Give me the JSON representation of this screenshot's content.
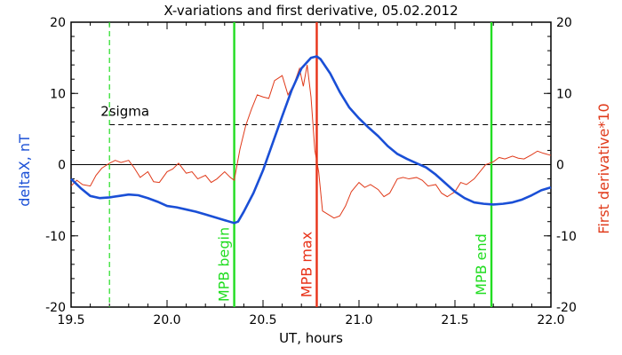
{
  "chart_data": {
    "type": "line",
    "title": "X-variations and first derivative, 05.02.2012",
    "xlabel": "UT, hours",
    "ylabel_left": "deltaX, nT",
    "ylabel_right": "First derivative*10",
    "xlim": [
      19.5,
      22.0
    ],
    "ylim": [
      -20,
      20
    ],
    "xticks": [
      "19.5",
      "20.0",
      "20.5",
      "21.0",
      "21.5",
      "22.0"
    ],
    "yticks": [
      "20",
      "10",
      "0",
      "-10",
      "-20"
    ],
    "colors": {
      "deltax": "#1a4fd6",
      "derivative": "#e03a1a",
      "mpb_green": "#22dd22",
      "mpb_max": "#e83218"
    },
    "sigma": {
      "label": "2sigma",
      "value": 5.6
    },
    "zero_line": 0,
    "sigma_dashed_x": 19.7,
    "markers": [
      {
        "label": "MPB begin",
        "x": 20.35
      },
      {
        "label": "MPB max",
        "x": 20.78
      },
      {
        "label": "MPB end",
        "x": 21.69
      }
    ],
    "series": [
      {
        "key": "deltax",
        "x": [
          19.5,
          19.55,
          19.6,
          19.65,
          19.7,
          19.75,
          19.8,
          19.85,
          19.9,
          19.95,
          20.0,
          20.05,
          20.1,
          20.15,
          20.2,
          20.25,
          20.3,
          20.35,
          20.37,
          20.4,
          20.45,
          20.5,
          20.55,
          20.6,
          20.65,
          20.7,
          20.75,
          20.78,
          20.8,
          20.85,
          20.9,
          20.95,
          21.0,
          21.05,
          21.1,
          21.15,
          21.2,
          21.25,
          21.3,
          21.35,
          21.4,
          21.45,
          21.5,
          21.55,
          21.6,
          21.65,
          21.7,
          21.75,
          21.8,
          21.85,
          21.9,
          21.95,
          22.0
        ],
        "values": [
          -2,
          -3.3,
          -4.4,
          -4.7,
          -4.6,
          -4.4,
          -4.2,
          -4.3,
          -4.7,
          -5.2,
          -5.8,
          -6.0,
          -6.3,
          -6.6,
          -7.0,
          -7.4,
          -7.8,
          -8.2,
          -8.0,
          -6.6,
          -4.0,
          -0.8,
          3.0,
          6.8,
          10.5,
          13.5,
          15.0,
          15.2,
          14.8,
          12.8,
          10.2,
          8.0,
          6.5,
          5.2,
          4.0,
          2.6,
          1.5,
          0.8,
          0.2,
          -0.4,
          -1.4,
          -2.6,
          -3.8,
          -4.7,
          -5.3,
          -5.5,
          -5.6,
          -5.5,
          -5.3,
          -4.9,
          -4.3,
          -3.6,
          -3.2
        ]
      },
      {
        "key": "derivative",
        "x": [
          19.5,
          19.53,
          19.56,
          19.6,
          19.63,
          19.66,
          19.7,
          19.73,
          19.76,
          19.8,
          19.83,
          19.86,
          19.9,
          19.93,
          19.96,
          20.0,
          20.03,
          20.06,
          20.1,
          20.13,
          20.16,
          20.2,
          20.23,
          20.26,
          20.3,
          20.33,
          20.35,
          20.38,
          20.41,
          20.44,
          20.47,
          20.5,
          20.53,
          20.56,
          20.6,
          20.63,
          20.66,
          20.69,
          20.71,
          20.73,
          20.75,
          20.77,
          20.79,
          20.81,
          20.84,
          20.87,
          20.9,
          20.93,
          20.96,
          21.0,
          21.03,
          21.06,
          21.1,
          21.13,
          21.16,
          21.2,
          21.23,
          21.26,
          21.3,
          21.33,
          21.36,
          21.4,
          21.43,
          21.46,
          21.5,
          21.53,
          21.56,
          21.6,
          21.63,
          21.66,
          21.7,
          21.73,
          21.76,
          21.8,
          21.83,
          21.86,
          21.9,
          21.93,
          21.96,
          22.0
        ],
        "values": [
          -3.0,
          -2.2,
          -2.8,
          -3.0,
          -1.5,
          -0.5,
          0.2,
          0.6,
          0.3,
          0.6,
          -0.5,
          -1.8,
          -1.0,
          -2.4,
          -2.5,
          -1.0,
          -0.6,
          0.2,
          -1.2,
          -1.0,
          -2.0,
          -1.5,
          -2.5,
          -2.0,
          -1.0,
          -1.8,
          -2.2,
          2.2,
          5.5,
          7.8,
          9.8,
          9.5,
          9.3,
          11.8,
          12.5,
          9.8,
          11.2,
          13.5,
          11.0,
          14.0,
          9.5,
          2.0,
          -1.0,
          -6.5,
          -7.0,
          -7.5,
          -7.2,
          -5.8,
          -3.8,
          -2.5,
          -3.2,
          -2.8,
          -3.5,
          -4.5,
          -4.0,
          -2.0,
          -1.8,
          -2.0,
          -1.8,
          -2.2,
          -3.0,
          -2.8,
          -4.0,
          -4.5,
          -3.8,
          -2.5,
          -2.8,
          -2.0,
          -1.0,
          0.0,
          0.4,
          1.0,
          0.8,
          1.2,
          0.9,
          0.8,
          1.4,
          1.9,
          1.6,
          1.3
        ]
      }
    ]
  }
}
